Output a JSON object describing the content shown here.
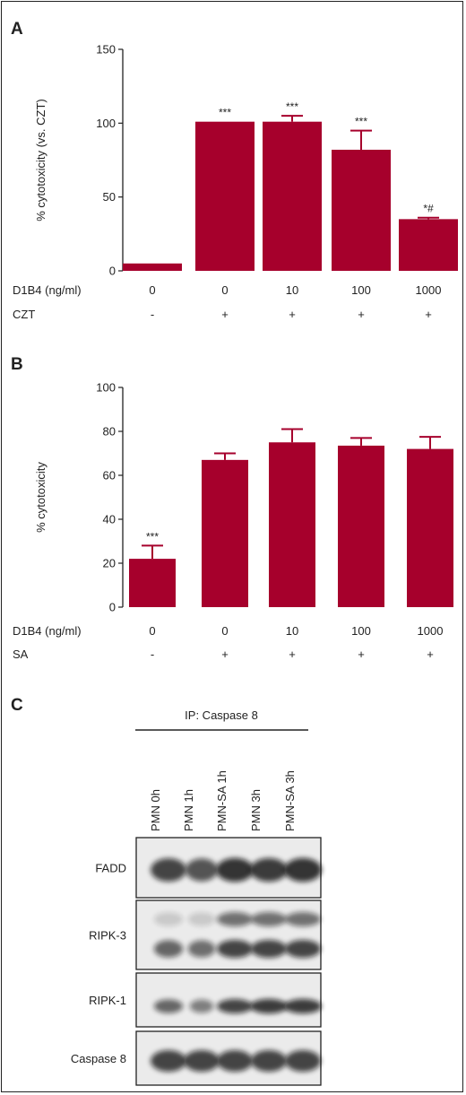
{
  "panels": {
    "a": "A",
    "b": "B",
    "c": "C"
  },
  "colors": {
    "bar": "#a6002c",
    "axis": "#222222"
  },
  "chart_data": [
    {
      "type": "bar",
      "panel": "A",
      "title": "",
      "ylabel": "% cytotoxicity (vs. CZT)",
      "ylim": [
        0,
        150
      ],
      "yticks": [
        0,
        50,
        100,
        150
      ],
      "row_labels": [
        "D1B4 (ng/ml)",
        "CZT"
      ],
      "categories": [
        "0",
        "0",
        "10",
        "100",
        "1000"
      ],
      "treatment": [
        "-",
        "+",
        "+",
        "+",
        "+"
      ],
      "values": [
        5,
        101,
        101,
        82,
        35
      ],
      "errors": [
        0,
        0,
        4,
        13,
        1
      ],
      "annotations": [
        "",
        "***",
        "***",
        "***",
        "*#"
      ]
    },
    {
      "type": "bar",
      "panel": "B",
      "title": "",
      "ylabel": "% cytotoxicity",
      "ylim": [
        0,
        100
      ],
      "yticks": [
        0,
        20,
        40,
        60,
        80,
        100
      ],
      "row_labels": [
        "D1B4 (ng/ml)",
        "SA"
      ],
      "categories": [
        "0",
        "0",
        "10",
        "100",
        "1000"
      ],
      "treatment": [
        "-",
        "+",
        "+",
        "+",
        "+"
      ],
      "values": [
        22,
        67,
        75,
        73.5,
        72
      ],
      "errors": [
        6,
        3,
        6,
        3.5,
        5.5
      ],
      "annotations": [
        "***",
        "",
        "",
        "",
        ""
      ]
    }
  ],
  "blot": {
    "ip_label": "IP: Caspase 8",
    "lanes": [
      "PMN 0h",
      "PMN 1h",
      "PMN-SA 1h",
      "PMN 3h",
      "PMN-SA 3h"
    ],
    "rows": [
      "FADD",
      "RIPK-3",
      "RIPK-1",
      "Caspase 8"
    ]
  }
}
